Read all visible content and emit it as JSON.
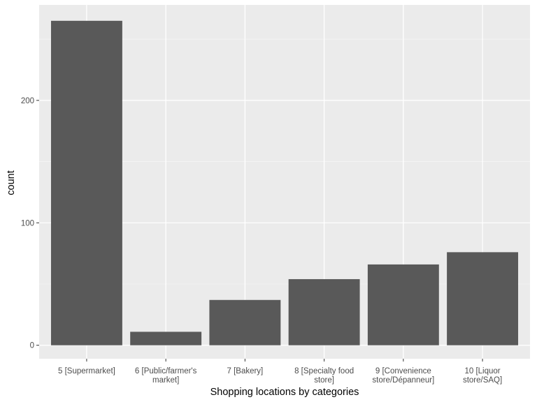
{
  "chart_data": {
    "type": "bar",
    "xlabel": "Shopping locations by categories",
    "ylabel": "count",
    "categories": [
      [
        "5 [Supermarket]"
      ],
      [
        "6 [Public/farmer's",
        "market]"
      ],
      [
        "7 [Bakery]"
      ],
      [
        "8 [Specialty food",
        "store]"
      ],
      [
        "9 [Convenience",
        "store/Dépanneur]"
      ],
      [
        "10 [Liquor",
        "store/SAQ]"
      ]
    ],
    "values": [
      265,
      11,
      37,
      54,
      66,
      76
    ],
    "ylim": [
      -11,
      278
    ],
    "yticks": [
      0,
      100,
      200
    ],
    "grid": true,
    "legend": "none",
    "colors": {
      "panel": "#ebebeb",
      "grid_major": "#ffffff",
      "grid_minor": "#f5f5f5",
      "bar": "#595959",
      "tick": "#333333"
    }
  }
}
